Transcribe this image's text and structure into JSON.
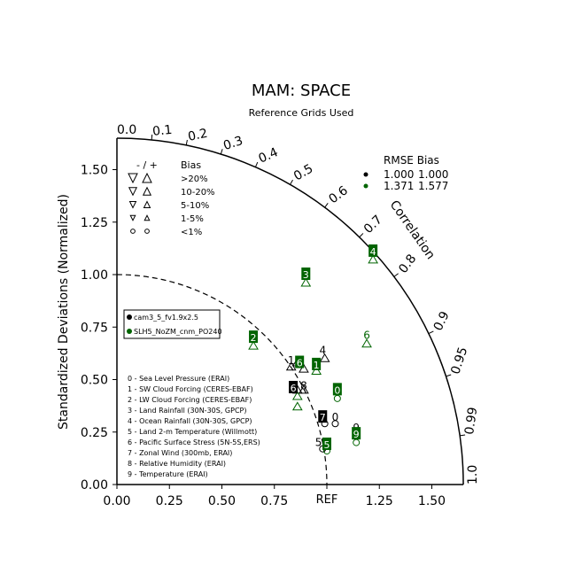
{
  "chart_data": {
    "type": "scatter",
    "title": "MAM: SPACE",
    "subtitle": "Reference Grids Used",
    "ylabel": "Standardized Deviations (Normalized)",
    "arc_label": "Correlation",
    "ref_label": "REF",
    "std_max": 1.65,
    "x_ticks": [
      {
        "value": 0.0,
        "label": "0.00"
      },
      {
        "value": 0.25,
        "label": "0.25"
      },
      {
        "value": 0.5,
        "label": "0.50"
      },
      {
        "value": 0.75,
        "label": "0.75"
      },
      {
        "value": 1.25,
        "label": "1.25"
      },
      {
        "value": 1.5,
        "label": "1.50"
      }
    ],
    "y_ticks": [
      {
        "value": 0.0,
        "label": "0.00"
      },
      {
        "value": 0.25,
        "label": "0.25"
      },
      {
        "value": 0.5,
        "label": "0.50"
      },
      {
        "value": 0.75,
        "label": "0.75"
      },
      {
        "value": 1.0,
        "label": "1.00"
      },
      {
        "value": 1.25,
        "label": "1.25"
      },
      {
        "value": 1.5,
        "label": "1.50"
      }
    ],
    "correlation_ticks": [
      {
        "value": 0.0,
        "label": "0.0"
      },
      {
        "value": 0.1,
        "label": "0.1"
      },
      {
        "value": 0.2,
        "label": "0.2"
      },
      {
        "value": 0.3,
        "label": "0.3"
      },
      {
        "value": 0.4,
        "label": "0.4"
      },
      {
        "value": 0.5,
        "label": "0.5"
      },
      {
        "value": 0.6,
        "label": "0.6"
      },
      {
        "value": 0.7,
        "label": "0.7"
      },
      {
        "value": 0.8,
        "label": "0.8"
      },
      {
        "value": 0.9,
        "label": "0.9"
      },
      {
        "value": 0.95,
        "label": "0.95"
      },
      {
        "value": 0.99,
        "label": "0.99"
      },
      {
        "value": 1.0,
        "label": "1.0"
      }
    ],
    "series": [
      {
        "name": "cam3_5_fv1.9x2.5",
        "color": "#000000",
        "points": [
          {
            "id": "0",
            "x": 1.04,
            "y": 0.29,
            "marker": "circle"
          },
          {
            "id": "1",
            "x": 0.89,
            "y": 0.55,
            "marker": "triangle-up"
          },
          {
            "id": "2",
            "x": 0.83,
            "y": 0.56,
            "marker": "triangle-up"
          },
          {
            "id": "3",
            "x": 0.86,
            "y": 0.58,
            "marker": "triangle-up"
          },
          {
            "id": "4",
            "x": 0.99,
            "y": 0.6,
            "marker": "triangle-up"
          },
          {
            "id": "5",
            "x": 0.98,
            "y": 0.17,
            "marker": "circle"
          },
          {
            "id": "6",
            "x": 0.86,
            "y": 0.45,
            "marker": "triangle-up"
          },
          {
            "id": "7",
            "x": 0.99,
            "y": 0.29,
            "marker": "circle"
          },
          {
            "id": "8",
            "x": 0.89,
            "y": 0.45,
            "marker": "triangle-up"
          },
          {
            "id": "9",
            "x": 1.14,
            "y": 0.25,
            "marker": "circle"
          }
        ]
      },
      {
        "name": "SLH5_NoZM_cnm_PO240",
        "color": "#006400",
        "points": [
          {
            "id": "0",
            "x": 1.05,
            "y": 0.41,
            "marker": "circle"
          },
          {
            "id": "1",
            "x": 0.95,
            "y": 0.54,
            "marker": "triangle-up"
          },
          {
            "id": "2",
            "x": 0.65,
            "y": 0.66,
            "marker": "triangle-up"
          },
          {
            "id": "3",
            "x": 0.9,
            "y": 0.96,
            "marker": "triangle-up"
          },
          {
            "id": "4",
            "x": 1.22,
            "y": 1.07,
            "marker": "triangle-up"
          },
          {
            "id": "5",
            "x": 1.0,
            "y": 0.16,
            "marker": "circle"
          },
          {
            "id": "6",
            "x": 0.86,
            "y": 0.42,
            "marker": "triangle-up"
          },
          {
            "id": "7",
            "x": 0.86,
            "y": 0.37,
            "marker": "triangle-up"
          },
          {
            "id": "8",
            "x": 1.19,
            "y": 0.67,
            "marker": "triangle-up"
          },
          {
            "id": "9",
            "x": 1.14,
            "y": 0.2,
            "marker": "circle"
          }
        ]
      }
    ],
    "labels": [
      {
        "id": "0",
        "series": 0,
        "x": 1.04,
        "y": 0.32,
        "boxed": false
      },
      {
        "id": "1",
        "series": 0,
        "x": 0.83,
        "y": 0.59,
        "boxed": false
      },
      {
        "id": "4",
        "series": 0,
        "x": 0.98,
        "y": 0.64,
        "boxed": false
      },
      {
        "id": "5",
        "series": 0,
        "x": 0.96,
        "y": 0.2,
        "boxed": false
      },
      {
        "id": "6",
        "series": 0,
        "x": 0.84,
        "y": 0.46,
        "boxed": true
      },
      {
        "id": "7",
        "series": 0,
        "x": 0.98,
        "y": 0.32,
        "boxed": true
      },
      {
        "id": "8",
        "series": 0,
        "x": 0.89,
        "y": 0.47,
        "boxed": false
      },
      {
        "id": "9",
        "series": 0,
        "x": 1.14,
        "y": 0.27,
        "boxed": false
      },
      {
        "id": "0",
        "series": 1,
        "x": 1.05,
        "y": 0.45,
        "boxed": true
      },
      {
        "id": "1",
        "series": 1,
        "x": 0.95,
        "y": 0.57,
        "boxed": true
      },
      {
        "id": "2",
        "series": 1,
        "x": 0.65,
        "y": 0.7,
        "boxed": true
      },
      {
        "id": "3",
        "series": 1,
        "x": 0.9,
        "y": 1.0,
        "boxed": true
      },
      {
        "id": "4",
        "series": 1,
        "x": 1.22,
        "y": 1.11,
        "boxed": true
      },
      {
        "id": "5",
        "series": 1,
        "x": 1.0,
        "y": 0.19,
        "boxed": true
      },
      {
        "id": "6",
        "series": 1,
        "x": 1.19,
        "y": 0.71,
        "boxed": false
      },
      {
        "id": "6",
        "series": 1,
        "x": 0.87,
        "y": 0.58,
        "boxed": true
      },
      {
        "id": "9",
        "series": 1,
        "x": 1.14,
        "y": 0.24,
        "boxed": true
      }
    ],
    "rmse_bias": {
      "header": "RMSE  Bias",
      "rows": [
        {
          "rmse": "1.000",
          "bias": "1.000",
          "color": "#000000"
        },
        {
          "rmse": "1.371",
          "bias": "1.577",
          "color": "#006400"
        }
      ]
    },
    "bias_legend": {
      "header_signs": "-  /  +",
      "header_label": "Bias",
      "rows": [
        {
          "label": ">20%",
          "marker": "triangle",
          "scale": 1.0
        },
        {
          "label": "10-20%",
          "marker": "triangle",
          "scale": 0.85
        },
        {
          "label": "5-10%",
          "marker": "triangle",
          "scale": 0.7
        },
        {
          "label": "1-5%",
          "marker": "triangle",
          "scale": 0.55
        },
        {
          "label": "<1%",
          "marker": "circle",
          "scale": 0.8
        }
      ]
    },
    "case_legend": [
      {
        "name": "cam3_5_fv1.9x2.5",
        "color": "#000000"
      },
      {
        "name": "SLH5_NoZM_cnm_PO240",
        "color": "#006400"
      }
    ],
    "variable_list": [
      "0 - Sea Level Pressure (ERAI)",
      "1 - SW Cloud Forcing (CERES-EBAF)",
      "2 - LW Cloud Forcing (CERES-EBAF)",
      "3 - Land Rainfall (30N-30S, GPCP)",
      "4 - Ocean Rainfall (30N-30S, GPCP)",
      "5 - Land 2-m Temperature (Willmott)",
      "6 - Pacific Surface Stress (5N-5S,ERS)",
      "7 - Zonal Wind (300mb, ERAI)",
      "8 - Relative Humidity (ERAI)",
      "9 - Temperature (ERAI)"
    ]
  }
}
